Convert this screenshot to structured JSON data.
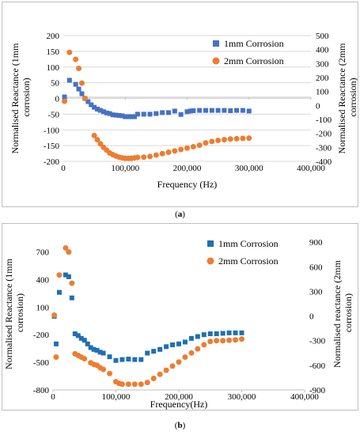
{
  "captions": {
    "a": "a",
    "b": "b"
  },
  "chart_data": [
    {
      "type": "scatter",
      "xlabel": "Frequency (Hz)",
      "ylabel_left": "Normalised Reactance (1mm corrosion)",
      "ylabel_right": "Normalised Reactance (2mm corrosion)",
      "xlim": [
        0,
        400000
      ],
      "xticks": [
        0,
        100000,
        200000,
        300000,
        400000
      ],
      "xtick_labels": [
        "0",
        "100,000",
        "200,000",
        "300,000",
        "400,000"
      ],
      "ylim_left": [
        -200,
        200
      ],
      "yticks_left": [
        -200,
        -150,
        -100,
        -50,
        0,
        50,
        100,
        150,
        200
      ],
      "ylim_right": [
        -400,
        500
      ],
      "yticks_right": [
        -400,
        -300,
        -200,
        -100,
        0,
        100,
        200,
        300,
        400,
        500
      ],
      "gridlines": "horizontal",
      "legend_position": "top-right",
      "series": [
        {
          "name": "1mm Corrosion",
          "axis": "left",
          "marker": "square",
          "color": "#4472C4",
          "x": [
            2000,
            10000,
            20000,
            25000,
            30000,
            35000,
            40000,
            45000,
            50000,
            55000,
            60000,
            65000,
            70000,
            75000,
            80000,
            85000,
            90000,
            95000,
            100000,
            105000,
            110000,
            115000,
            120000,
            130000,
            140000,
            150000,
            160000,
            170000,
            180000,
            190000,
            200000,
            205000,
            210000,
            220000,
            230000,
            240000,
            250000,
            260000,
            270000,
            280000,
            290000,
            300000
          ],
          "y": [
            5,
            58,
            45,
            30,
            15,
            0,
            -10,
            -20,
            -28,
            -34,
            -38,
            -42,
            -46,
            -48,
            -52,
            -53,
            -54,
            -55,
            -58,
            -58,
            -58,
            -58,
            -50,
            -50,
            -50,
            -48,
            -45,
            -45,
            -40,
            -51,
            -42,
            -40,
            -39,
            -38,
            -38,
            -38,
            -38,
            -38,
            -39,
            -38,
            -38,
            -40
          ]
        },
        {
          "name": "2mm Corrosion",
          "axis": "right",
          "marker": "circle",
          "color": "#ED7D31",
          "x": [
            2000,
            10000,
            20000,
            25000,
            30000,
            35000,
            50000,
            55000,
            60000,
            65000,
            70000,
            75000,
            80000,
            85000,
            90000,
            95000,
            100000,
            105000,
            110000,
            115000,
            120000,
            130000,
            140000,
            150000,
            160000,
            170000,
            180000,
            190000,
            200000,
            210000,
            220000,
            230000,
            240000,
            250000,
            260000,
            270000,
            280000,
            290000,
            300000
          ],
          "y": [
            30,
            380,
            330,
            265,
            160,
            50,
            -215,
            -245,
            -275,
            -300,
            -320,
            -340,
            -352,
            -362,
            -370,
            -375,
            -378,
            -378,
            -378,
            -375,
            -372,
            -370,
            -365,
            -355,
            -345,
            -335,
            -325,
            -315,
            -305,
            -295,
            -285,
            -268,
            -258,
            -250,
            -245,
            -240,
            -238,
            -236,
            -234
          ]
        }
      ]
    },
    {
      "type": "scatter",
      "xlabel": "Frequency(Hz)",
      "ylabel_left": "Normalised Reactance (1mm corrosion)",
      "ylabel_right": "Normalised reactance (2mm corrosion)",
      "xlim": [
        0,
        400000
      ],
      "xticks": [
        0,
        100000,
        200000,
        300000,
        400000
      ],
      "xtick_labels": [
        "0",
        "100,000",
        "200,000",
        "300,000",
        "400,000"
      ],
      "ylim_left": [
        -800,
        850
      ],
      "yticks_left": [
        -800,
        -500,
        -200,
        100,
        400,
        700
      ],
      "ylim_right": [
        -900,
        950
      ],
      "yticks_right": [
        -900,
        -600,
        -300,
        0,
        300,
        600,
        900
      ],
      "gridlines": "none",
      "legend_position": "top-right",
      "series": [
        {
          "name": "1mm Corrosion",
          "axis": "left",
          "marker": "square",
          "color": "#1F6FB4",
          "x": [
            2000,
            5000,
            10000,
            20000,
            25000,
            30000,
            35000,
            40000,
            45000,
            50000,
            55000,
            60000,
            65000,
            70000,
            75000,
            80000,
            90000,
            100000,
            110000,
            120000,
            130000,
            140000,
            150000,
            160000,
            170000,
            180000,
            190000,
            200000,
            210000,
            220000,
            230000,
            240000,
            250000,
            260000,
            270000,
            280000,
            290000,
            300000
          ],
          "y": [
            0,
            -300,
            260,
            450,
            430,
            200,
            -190,
            -210,
            -240,
            -260,
            -300,
            -340,
            -360,
            -370,
            -390,
            -400,
            -440,
            -480,
            -470,
            -465,
            -470,
            -470,
            -400,
            -380,
            -360,
            -330,
            -310,
            -300,
            -280,
            -240,
            -220,
            -200,
            -190,
            -190,
            -185,
            -180,
            -180,
            -180
          ]
        },
        {
          "name": "2mm Corrosion",
          "axis": "right",
          "marker": "circle",
          "color": "#ED7D31",
          "x": [
            2000,
            5000,
            10000,
            20000,
            25000,
            30000,
            35000,
            40000,
            45000,
            50000,
            60000,
            65000,
            70000,
            75000,
            80000,
            90000,
            100000,
            105000,
            110000,
            120000,
            130000,
            140000,
            150000,
            160000,
            170000,
            180000,
            190000,
            200000,
            210000,
            220000,
            230000,
            240000,
            250000,
            260000,
            270000,
            280000,
            290000,
            300000
          ],
          "y": [
            10,
            -500,
            500,
            830,
            780,
            400,
            -460,
            -480,
            -500,
            -520,
            -570,
            -590,
            -600,
            -630,
            -650,
            -700,
            -800,
            -820,
            -830,
            -830,
            -830,
            -830,
            -810,
            -760,
            -710,
            -660,
            -610,
            -560,
            -500,
            -450,
            -400,
            -350,
            -310,
            -300,
            -300,
            -295,
            -290,
            -280
          ]
        }
      ]
    }
  ]
}
